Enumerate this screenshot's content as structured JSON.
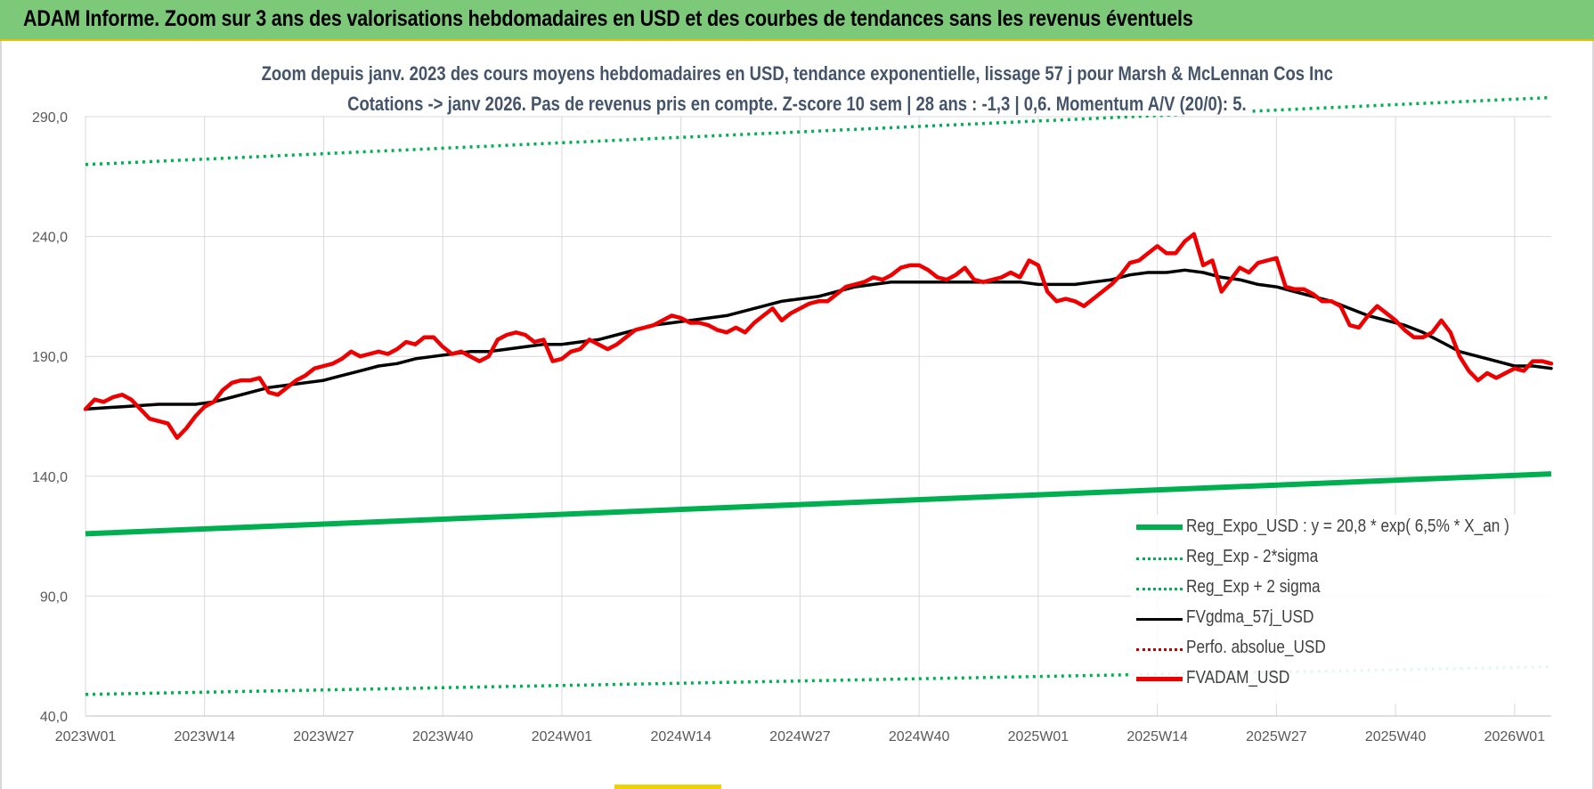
{
  "banner": {
    "title": "ADAM Informe. Zoom sur 3 ans des valorisations hebdomadaires en USD et des courbes de tendances sans les revenus éventuels"
  },
  "chart_subtitle": {
    "line1": "Zoom depuis janv. 2023 des cours moyens hebdomadaires en USD, tendance exponentielle, lissage 57 j pour Marsh & McLennan Cos Inc",
    "line2": "Cotations -> janv 2026. Pas de revenus pris en compte. Z-score 10 sem | 28 ans : -1,3 | 0,6. Momentum A/V (20/0): 5."
  },
  "colors": {
    "banner": "#7dc97a",
    "regression": "#00b050",
    "smoothed": "#000000",
    "perfo": "#c00000",
    "price": "#ee0000",
    "grid": "#d9d9d9",
    "axis_text": "#595959"
  },
  "chart_data": {
    "type": "line",
    "title": "Zoom depuis janv. 2023 des cours moyens hebdomadaires en USD, tendance exponentielle, lissage 57 j pour Marsh & McLennan Cos Inc",
    "xlabel": "",
    "ylabel": "",
    "ylim": [
      40,
      290
    ],
    "y_ticks": [
      40,
      90,
      140,
      190,
      240,
      290
    ],
    "y_tick_labels": [
      "40,0",
      "90,0",
      "140,0",
      "190,0",
      "240,0",
      "290,0"
    ],
    "x_ticks": [
      0,
      13,
      26,
      39,
      52,
      65,
      78,
      91,
      104,
      117,
      130,
      143,
      156
    ],
    "x_tick_labels": [
      "2023W01",
      "2023W14",
      "2023W27",
      "2023W40",
      "2024W01",
      "2024W14",
      "2024W27",
      "2024W40",
      "2025W01",
      "2025W14",
      "2025W27",
      "2025W40",
      "2026W01"
    ],
    "x_range": [
      0,
      160
    ],
    "legend_position": "bottom-right",
    "series": [
      {
        "name": "Reg_Expo_USD : y = 20,8 * exp( 6,5% *  X_an )",
        "style": "thick-solid-green",
        "x": [
          0,
          160
        ],
        "values": [
          116.0,
          141.0
        ]
      },
      {
        "name": "Reg_Exp - 2*sigma",
        "style": "dotted-green",
        "x": [
          0,
          160
        ],
        "values": [
          49.0,
          60.5
        ]
      },
      {
        "name": "Reg_Exp + 2 sigma",
        "style": "dotted-green",
        "x": [
          0,
          160
        ],
        "values": [
          270.0,
          298.0
        ]
      },
      {
        "name": "FVgdma_57j_USD",
        "style": "solid-black",
        "x": [
          0,
          4,
          8,
          10,
          12,
          14,
          16,
          18,
          20,
          22,
          24,
          26,
          28,
          30,
          32,
          34,
          36,
          38,
          40,
          42,
          44,
          46,
          48,
          50,
          52,
          54,
          56,
          58,
          60,
          62,
          64,
          66,
          68,
          70,
          72,
          74,
          76,
          78,
          80,
          82,
          84,
          86,
          88,
          90,
          92,
          94,
          96,
          98,
          100,
          102,
          104,
          106,
          108,
          110,
          112,
          114,
          116,
          118,
          120,
          122,
          124,
          126,
          128,
          130,
          132,
          134,
          136,
          138,
          140,
          142,
          144,
          146,
          148,
          150,
          152,
          154,
          156,
          158,
          160
        ],
        "values": [
          168,
          169,
          170,
          170,
          170,
          171,
          173,
          175,
          177,
          178,
          179,
          180,
          182,
          184,
          186,
          187,
          189,
          190,
          191,
          192,
          192,
          193,
          194,
          195,
          195,
          196,
          197,
          199,
          201,
          203,
          204,
          205,
          206,
          207,
          209,
          211,
          213,
          214,
          215,
          217,
          219,
          220,
          221,
          221,
          221,
          221,
          221,
          221,
          221,
          221,
          220,
          220,
          220,
          221,
          222,
          224,
          225,
          225,
          226,
          225,
          223,
          222,
          220,
          219,
          217,
          215,
          213,
          210,
          207,
          205,
          203,
          200,
          196,
          192,
          190,
          188,
          186,
          186,
          185
        ]
      },
      {
        "name": "Perfo. absolue_USD",
        "style": "dotted-darkred",
        "x": [],
        "values": []
      },
      {
        "name": "FVADAM_USD",
        "style": "thick-solid-red",
        "x": [
          0,
          1,
          2,
          3,
          4,
          5,
          6,
          7,
          8,
          9,
          10,
          11,
          12,
          13,
          14,
          15,
          16,
          17,
          18,
          19,
          20,
          21,
          22,
          23,
          24,
          25,
          26,
          27,
          28,
          29,
          30,
          31,
          32,
          33,
          34,
          35,
          36,
          37,
          38,
          39,
          40,
          41,
          42,
          43,
          44,
          45,
          46,
          47,
          48,
          49,
          50,
          51,
          52,
          53,
          54,
          55,
          56,
          57,
          58,
          59,
          60,
          61,
          62,
          63,
          64,
          65,
          66,
          67,
          68,
          69,
          70,
          71,
          72,
          73,
          74,
          75,
          76,
          77,
          78,
          79,
          80,
          81,
          82,
          83,
          84,
          85,
          86,
          87,
          88,
          89,
          90,
          91,
          92,
          93,
          94,
          95,
          96,
          97,
          98,
          99,
          100,
          101,
          102,
          103,
          104,
          105,
          106,
          107,
          108,
          109,
          110,
          111,
          112,
          113,
          114,
          115,
          116,
          117,
          118,
          119,
          120,
          121,
          122,
          123,
          124,
          125,
          126,
          127,
          128,
          129,
          130,
          131,
          132,
          133,
          134,
          135,
          136,
          137,
          138,
          139,
          140,
          141,
          142,
          143,
          144,
          145,
          146,
          147,
          148,
          149,
          150,
          151,
          152,
          153,
          154,
          155,
          156,
          157,
          158,
          159,
          160
        ],
        "values": [
          168,
          172,
          171,
          173,
          174,
          172,
          168,
          164,
          163,
          162,
          156,
          160,
          165,
          169,
          171,
          176,
          179,
          180,
          180,
          181,
          175,
          174,
          177,
          180,
          182,
          185,
          186,
          187,
          189,
          192,
          190,
          191,
          192,
          191,
          193,
          196,
          195,
          198,
          198,
          194,
          191,
          192,
          190,
          188,
          190,
          197,
          199,
          200,
          199,
          196,
          197,
          188,
          189,
          192,
          193,
          197,
          195,
          193,
          195,
          198,
          201,
          202,
          203,
          205,
          207,
          206,
          204,
          204,
          203,
          201,
          200,
          202,
          200,
          204,
          207,
          210,
          205,
          208,
          210,
          212,
          213,
          213,
          216,
          219,
          220,
          221,
          223,
          222,
          224,
          227,
          228,
          228,
          226,
          223,
          222,
          224,
          227,
          222,
          221,
          222,
          223,
          225,
          223,
          230,
          228,
          217,
          213,
          214,
          213,
          211,
          214,
          217,
          220,
          224,
          229,
          230,
          233,
          236,
          233,
          233,
          238,
          241,
          228,
          230,
          217,
          222,
          227,
          225,
          229,
          230,
          231,
          219,
          218,
          218,
          216,
          213,
          213,
          211,
          203,
          202,
          207,
          211,
          208,
          205,
          201,
          198,
          198,
          200,
          205,
          200,
          190,
          184,
          180,
          183,
          181,
          183,
          185,
          184,
          188,
          188,
          187
        ]
      }
    ]
  }
}
